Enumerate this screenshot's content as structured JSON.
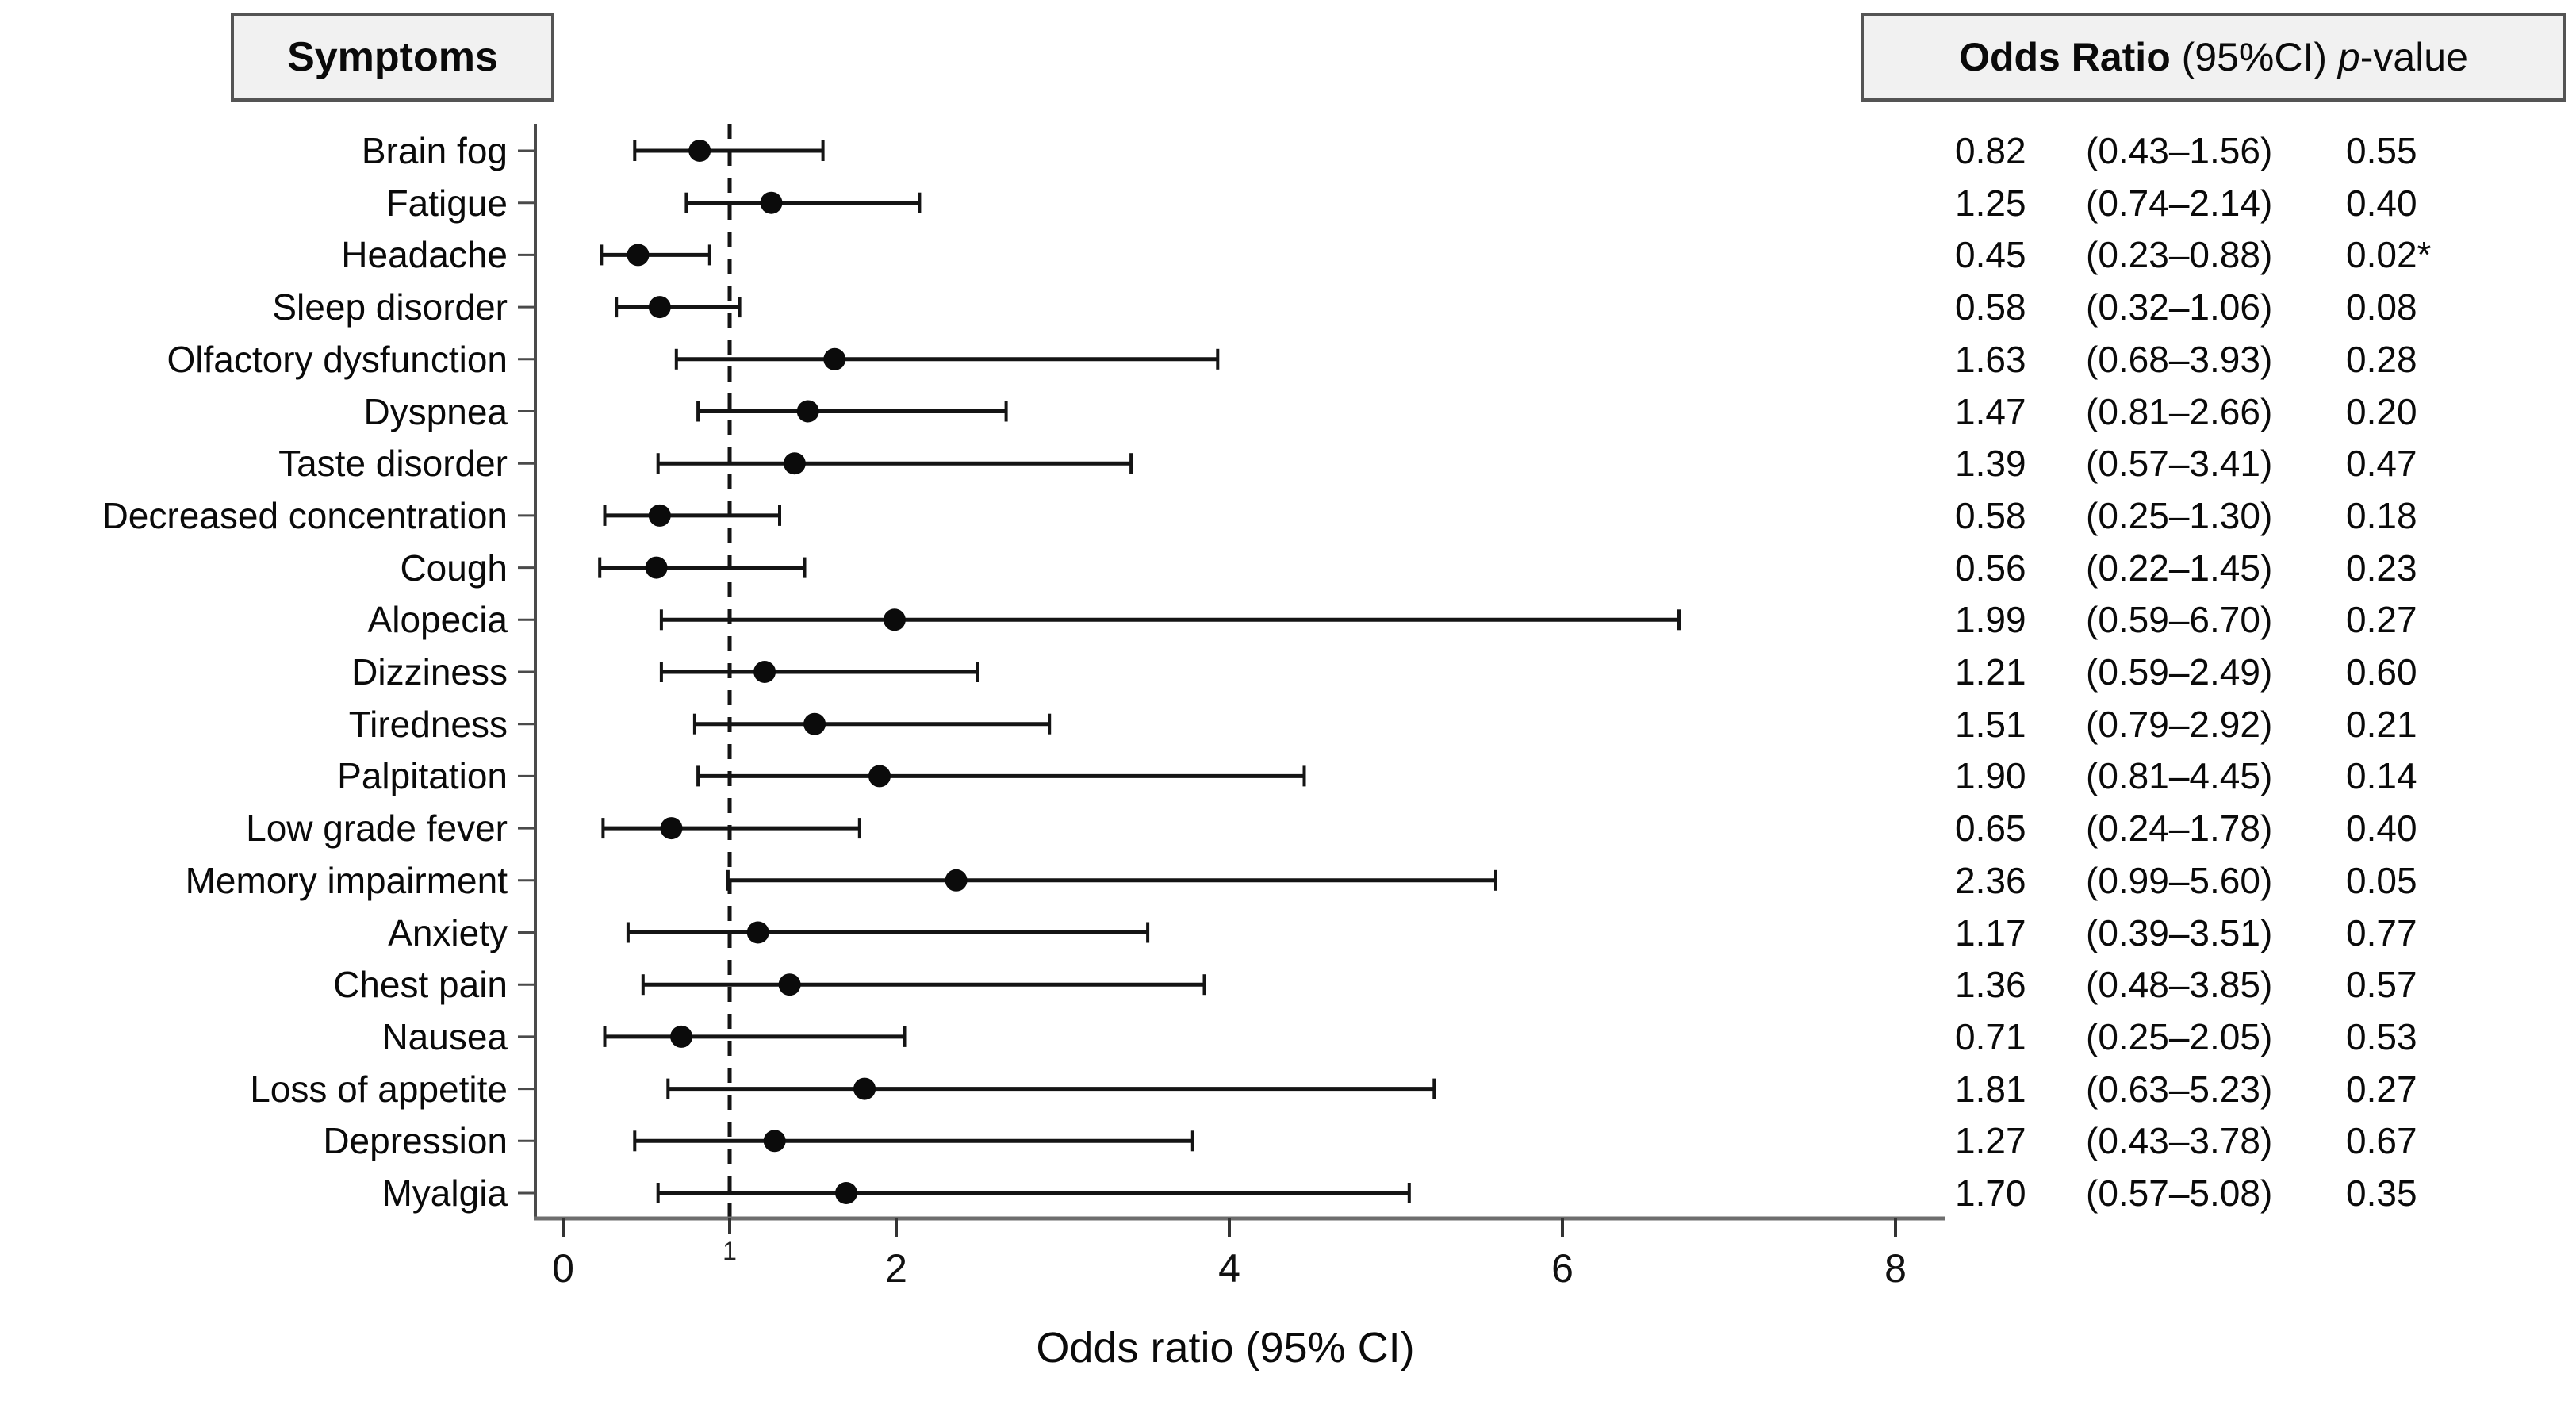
{
  "symptoms_header": "Symptoms",
  "or_header": {
    "bold": "Odds Ratio",
    "ci": " (95%CI) ",
    "p_italic": "p",
    "suffix": "-value"
  },
  "x_axis": {
    "label": "Odds ratio (95% CI)",
    "major_tick_labels": [
      "0",
      "2",
      "4",
      "6",
      "8"
    ],
    "minor_tick_label": "1"
  },
  "chart_data": {
    "type": "forest",
    "title": "Symptoms — Odds Ratio (95%CI) p-value",
    "x_axis_label": "Odds ratio (95% CI)",
    "x_ticks": [
      0,
      2,
      4,
      6,
      8
    ],
    "x_minor_tick": 1,
    "x_range": [
      0,
      8.3
    ],
    "reference_line": 1.0,
    "marker_color": "#0b0b0b",
    "rows": [
      {
        "label": "Brain fog",
        "or": 0.82,
        "ci_low": 0.43,
        "ci_high": 1.56,
        "or_text": "0.82",
        "ci_text": "(0.43–1.56)",
        "p_text": "0.55"
      },
      {
        "label": "Fatigue",
        "or": 1.25,
        "ci_low": 0.74,
        "ci_high": 2.14,
        "or_text": "1.25",
        "ci_text": "(0.74–2.14)",
        "p_text": "0.40"
      },
      {
        "label": "Headache",
        "or": 0.45,
        "ci_low": 0.23,
        "ci_high": 0.88,
        "or_text": "0.45",
        "ci_text": "(0.23–0.88)",
        "p_text": "0.02*"
      },
      {
        "label": "Sleep disorder",
        "or": 0.58,
        "ci_low": 0.32,
        "ci_high": 1.06,
        "or_text": "0.58",
        "ci_text": "(0.32–1.06)",
        "p_text": "0.08"
      },
      {
        "label": "Olfactory dysfunction",
        "or": 1.63,
        "ci_low": 0.68,
        "ci_high": 3.93,
        "or_text": "1.63",
        "ci_text": "(0.68–3.93)",
        "p_text": "0.28"
      },
      {
        "label": "Dyspnea",
        "or": 1.47,
        "ci_low": 0.81,
        "ci_high": 2.66,
        "or_text": "1.47",
        "ci_text": "(0.81–2.66)",
        "p_text": "0.20"
      },
      {
        "label": "Taste disorder",
        "or": 1.39,
        "ci_low": 0.57,
        "ci_high": 3.41,
        "or_text": "1.39",
        "ci_text": "(0.57–3.41)",
        "p_text": "0.47"
      },
      {
        "label": "Decreased concentration",
        "or": 0.58,
        "ci_low": 0.25,
        "ci_high": 1.3,
        "or_text": "0.58",
        "ci_text": "(0.25–1.30)",
        "p_text": "0.18"
      },
      {
        "label": "Cough",
        "or": 0.56,
        "ci_low": 0.22,
        "ci_high": 1.45,
        "or_text": "0.56",
        "ci_text": "(0.22–1.45)",
        "p_text": "0.23"
      },
      {
        "label": "Alopecia",
        "or": 1.99,
        "ci_low": 0.59,
        "ci_high": 6.7,
        "or_text": "1.99",
        "ci_text": "(0.59–6.70)",
        "p_text": "0.27"
      },
      {
        "label": "Dizziness",
        "or": 1.21,
        "ci_low": 0.59,
        "ci_high": 2.49,
        "or_text": "1.21",
        "ci_text": "(0.59–2.49)",
        "p_text": "0.60"
      },
      {
        "label": "Tiredness",
        "or": 1.51,
        "ci_low": 0.79,
        "ci_high": 2.92,
        "or_text": "1.51",
        "ci_text": "(0.79–2.92)",
        "p_text": "0.21"
      },
      {
        "label": "Palpitation",
        "or": 1.9,
        "ci_low": 0.81,
        "ci_high": 4.45,
        "or_text": "1.90",
        "ci_text": "(0.81–4.45)",
        "p_text": "0.14"
      },
      {
        "label": "Low grade fever",
        "or": 0.65,
        "ci_low": 0.24,
        "ci_high": 1.78,
        "or_text": "0.65",
        "ci_text": "(0.24–1.78)",
        "p_text": "0.40"
      },
      {
        "label": "Memory impairment",
        "or": 2.36,
        "ci_low": 0.99,
        "ci_high": 5.6,
        "or_text": "2.36",
        "ci_text": "(0.99–5.60)",
        "p_text": "0.05"
      },
      {
        "label": "Anxiety",
        "or": 1.17,
        "ci_low": 0.39,
        "ci_high": 3.51,
        "or_text": "1.17",
        "ci_text": "(0.39–3.51)",
        "p_text": "0.77"
      },
      {
        "label": "Chest pain",
        "or": 1.36,
        "ci_low": 0.48,
        "ci_high": 3.85,
        "or_text": "1.36",
        "ci_text": "(0.48–3.85)",
        "p_text": "0.57"
      },
      {
        "label": "Nausea",
        "or": 0.71,
        "ci_low": 0.25,
        "ci_high": 2.05,
        "or_text": "0.71",
        "ci_text": "(0.25–2.05)",
        "p_text": "0.53"
      },
      {
        "label": "Loss of appetite",
        "or": 1.81,
        "ci_low": 0.63,
        "ci_high": 5.23,
        "or_text": "1.81",
        "ci_text": "(0.63–5.23)",
        "p_text": "0.27"
      },
      {
        "label": "Depression",
        "or": 1.27,
        "ci_low": 0.43,
        "ci_high": 3.78,
        "or_text": "1.27",
        "ci_text": "(0.43–3.78)",
        "p_text": "0.67"
      },
      {
        "label": "Myalgia",
        "or": 1.7,
        "ci_low": 0.57,
        "ci_high": 5.08,
        "or_text": "1.70",
        "ci_text": "(0.57–5.08)",
        "p_text": "0.35"
      }
    ]
  }
}
